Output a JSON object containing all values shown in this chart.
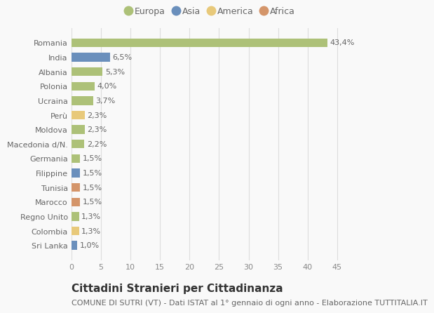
{
  "categories": [
    "Romania",
    "India",
    "Albania",
    "Polonia",
    "Ucraina",
    "Perù",
    "Moldova",
    "Macedonia d/N.",
    "Germania",
    "Filippine",
    "Tunisia",
    "Marocco",
    "Regno Unito",
    "Colombia",
    "Sri Lanka"
  ],
  "values": [
    43.4,
    6.5,
    5.3,
    4.0,
    3.7,
    2.3,
    2.3,
    2.2,
    1.5,
    1.5,
    1.5,
    1.5,
    1.3,
    1.3,
    1.0
  ],
  "labels": [
    "43,4%",
    "6,5%",
    "5,3%",
    "4,0%",
    "3,7%",
    "2,3%",
    "2,3%",
    "2,2%",
    "1,5%",
    "1,5%",
    "1,5%",
    "1,5%",
    "1,3%",
    "1,3%",
    "1,0%"
  ],
  "colors": [
    "#adc178",
    "#6a8fbc",
    "#adc178",
    "#adc178",
    "#adc178",
    "#e8c97a",
    "#adc178",
    "#adc178",
    "#adc178",
    "#6a8fbc",
    "#d4956a",
    "#d4956a",
    "#adc178",
    "#e8c97a",
    "#6a8fbc"
  ],
  "legend_labels": [
    "Europa",
    "Asia",
    "America",
    "Africa"
  ],
  "legend_colors": [
    "#adc178",
    "#6a8fbc",
    "#e8c97a",
    "#d4956a"
  ],
  "xlim": [
    0,
    47
  ],
  "xticks": [
    0,
    5,
    10,
    15,
    20,
    25,
    30,
    35,
    40,
    45
  ],
  "title": "Cittadini Stranieri per Cittadinanza",
  "subtitle": "COMUNE DI SUTRI (VT) - Dati ISTAT al 1° gennaio di ogni anno - Elaborazione TUTTITALIA.IT",
  "bg_color": "#f9f9f9",
  "grid_color": "#dddddd",
  "bar_height": 0.6,
  "title_fontsize": 11,
  "subtitle_fontsize": 8,
  "label_fontsize": 8,
  "tick_fontsize": 8,
  "legend_fontsize": 9
}
